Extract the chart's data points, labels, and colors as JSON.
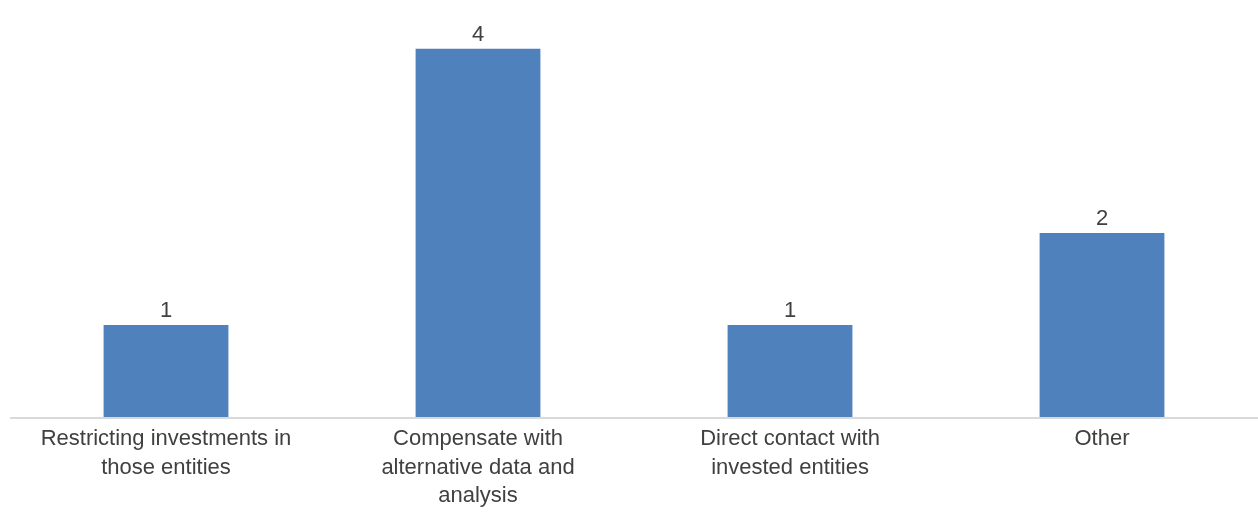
{
  "chart_data": {
    "type": "bar",
    "categories": [
      "Restricting investments in those entities",
      "Compensate with alternative data and analysis",
      "Direct contact with invested entities",
      "Other"
    ],
    "values": [
      1,
      4,
      1,
      2
    ],
    "color": "#4f81bd",
    "data_labels": true
  }
}
